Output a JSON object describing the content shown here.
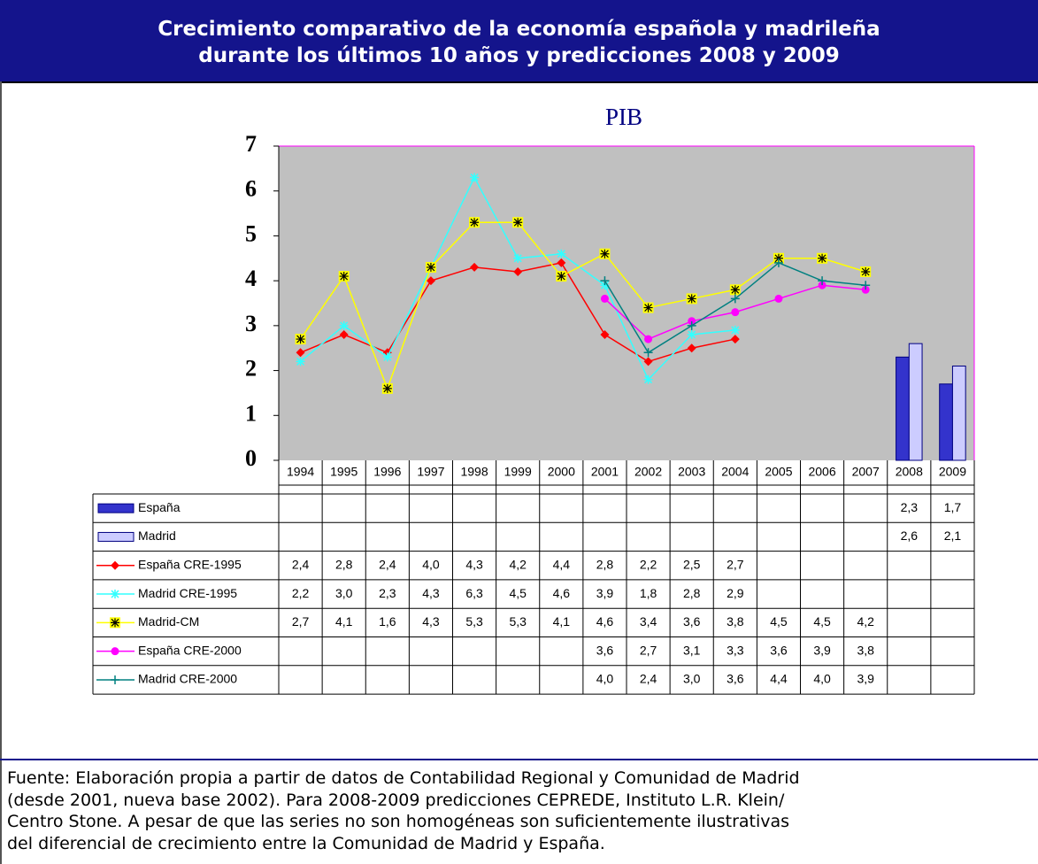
{
  "header": [
    "Crecimiento comparativo de la economía española y madrileña",
    "durante los últimos 10 años y predicciones 2008 y 2009"
  ],
  "chart_data": {
    "type": "line",
    "title": "PIB",
    "categories": [
      "1994",
      "1995",
      "1996",
      "1997",
      "1998",
      "1999",
      "2000",
      "2001",
      "2002",
      "2003",
      "2004",
      "2005",
      "2006",
      "2007",
      "2008",
      "2009"
    ],
    "ylim": [
      0,
      7
    ],
    "yticks": [
      0,
      1,
      2,
      3,
      4,
      5,
      6,
      7
    ],
    "series": [
      {
        "name": "España",
        "type": "bar",
        "color": "#3333cc",
        "values": [
          null,
          null,
          null,
          null,
          null,
          null,
          null,
          null,
          null,
          null,
          null,
          null,
          null,
          null,
          2.3,
          1.7
        ],
        "value_labels": [
          null,
          null,
          null,
          null,
          null,
          null,
          null,
          null,
          null,
          null,
          null,
          null,
          null,
          null,
          "2,3",
          "1,7"
        ]
      },
      {
        "name": "Madrid",
        "type": "bar",
        "color": "#ccccff",
        "values": [
          null,
          null,
          null,
          null,
          null,
          null,
          null,
          null,
          null,
          null,
          null,
          null,
          null,
          null,
          2.6,
          2.1
        ],
        "value_labels": [
          null,
          null,
          null,
          null,
          null,
          null,
          null,
          null,
          null,
          null,
          null,
          null,
          null,
          null,
          "2,6",
          "2,1"
        ]
      },
      {
        "name": "España CRE-1995",
        "color": "#ff0000",
        "marker": "diamond",
        "values": [
          2.4,
          2.8,
          2.4,
          4.0,
          4.3,
          4.2,
          4.4,
          2.8,
          2.2,
          2.5,
          2.7,
          null,
          null,
          null,
          null,
          null
        ],
        "value_labels": [
          "2,4",
          "2,8",
          "2,4",
          "4,0",
          "4,3",
          "4,2",
          "4,4",
          "2,8",
          "2,2",
          "2,5",
          "2,7",
          null,
          null,
          null,
          null,
          null
        ]
      },
      {
        "name": "Madrid CRE-1995",
        "color": "#33ffff",
        "marker": "asterisk",
        "values": [
          2.2,
          3.0,
          2.3,
          4.3,
          6.3,
          4.5,
          4.6,
          3.9,
          1.8,
          2.8,
          2.9,
          null,
          null,
          null,
          null,
          null
        ],
        "value_labels": [
          "2,2",
          "3,0",
          "2,3",
          "4,3",
          "6,3",
          "4,5",
          "4,6",
          "3,9",
          "1,8",
          "2,8",
          "2,9",
          null,
          null,
          null,
          null,
          null
        ]
      },
      {
        "name": "Madrid-CM",
        "color": "#ffff00",
        "marker": "square-asterisk",
        "values": [
          2.7,
          4.1,
          1.6,
          4.3,
          5.3,
          5.3,
          4.1,
          4.6,
          3.4,
          3.6,
          3.8,
          4.5,
          4.5,
          4.2,
          null,
          null
        ],
        "value_labels": [
          "2,7",
          "4,1",
          "1,6",
          "4,3",
          "5,3",
          "5,3",
          "4,1",
          "4,6",
          "3,4",
          "3,6",
          "3,8",
          "4,5",
          "4,5",
          "4,2",
          null,
          null
        ]
      },
      {
        "name": "España CRE-2000",
        "color": "#ff00ff",
        "marker": "circle",
        "values": [
          null,
          null,
          null,
          null,
          null,
          null,
          null,
          3.6,
          2.7,
          3.1,
          3.3,
          3.6,
          3.9,
          3.8,
          null,
          null
        ],
        "value_labels": [
          null,
          null,
          null,
          null,
          null,
          null,
          null,
          "3,6",
          "2,7",
          "3,1",
          "3,3",
          "3,6",
          "3,9",
          "3,8",
          null,
          null
        ]
      },
      {
        "name": "Madrid CRE-2000",
        "color": "#008080",
        "marker": "plus",
        "values": [
          null,
          null,
          null,
          null,
          null,
          null,
          null,
          4.0,
          2.4,
          3.0,
          3.6,
          4.4,
          4.0,
          3.9,
          null,
          null
        ],
        "value_labels": [
          null,
          null,
          null,
          null,
          null,
          null,
          null,
          "4,0",
          "2,4",
          "3,0",
          "3,6",
          "4,4",
          "4,0",
          "3,9",
          null,
          null
        ]
      }
    ]
  },
  "source": [
    "Fuente: Elaboración propia a partir de datos de Contabilidad Regional y Comunidad de Madrid",
    "(desde 2001, nueva base 2002). Para 2008-2009 predicciones CEPREDE, Instituto L.R. Klein/",
    "Centro Stone. A pesar de que las series no son homogéneas son suficientemente ilustrativas",
    "del diferencial de crecimiento entre la Comunidad de Madrid y España."
  ]
}
